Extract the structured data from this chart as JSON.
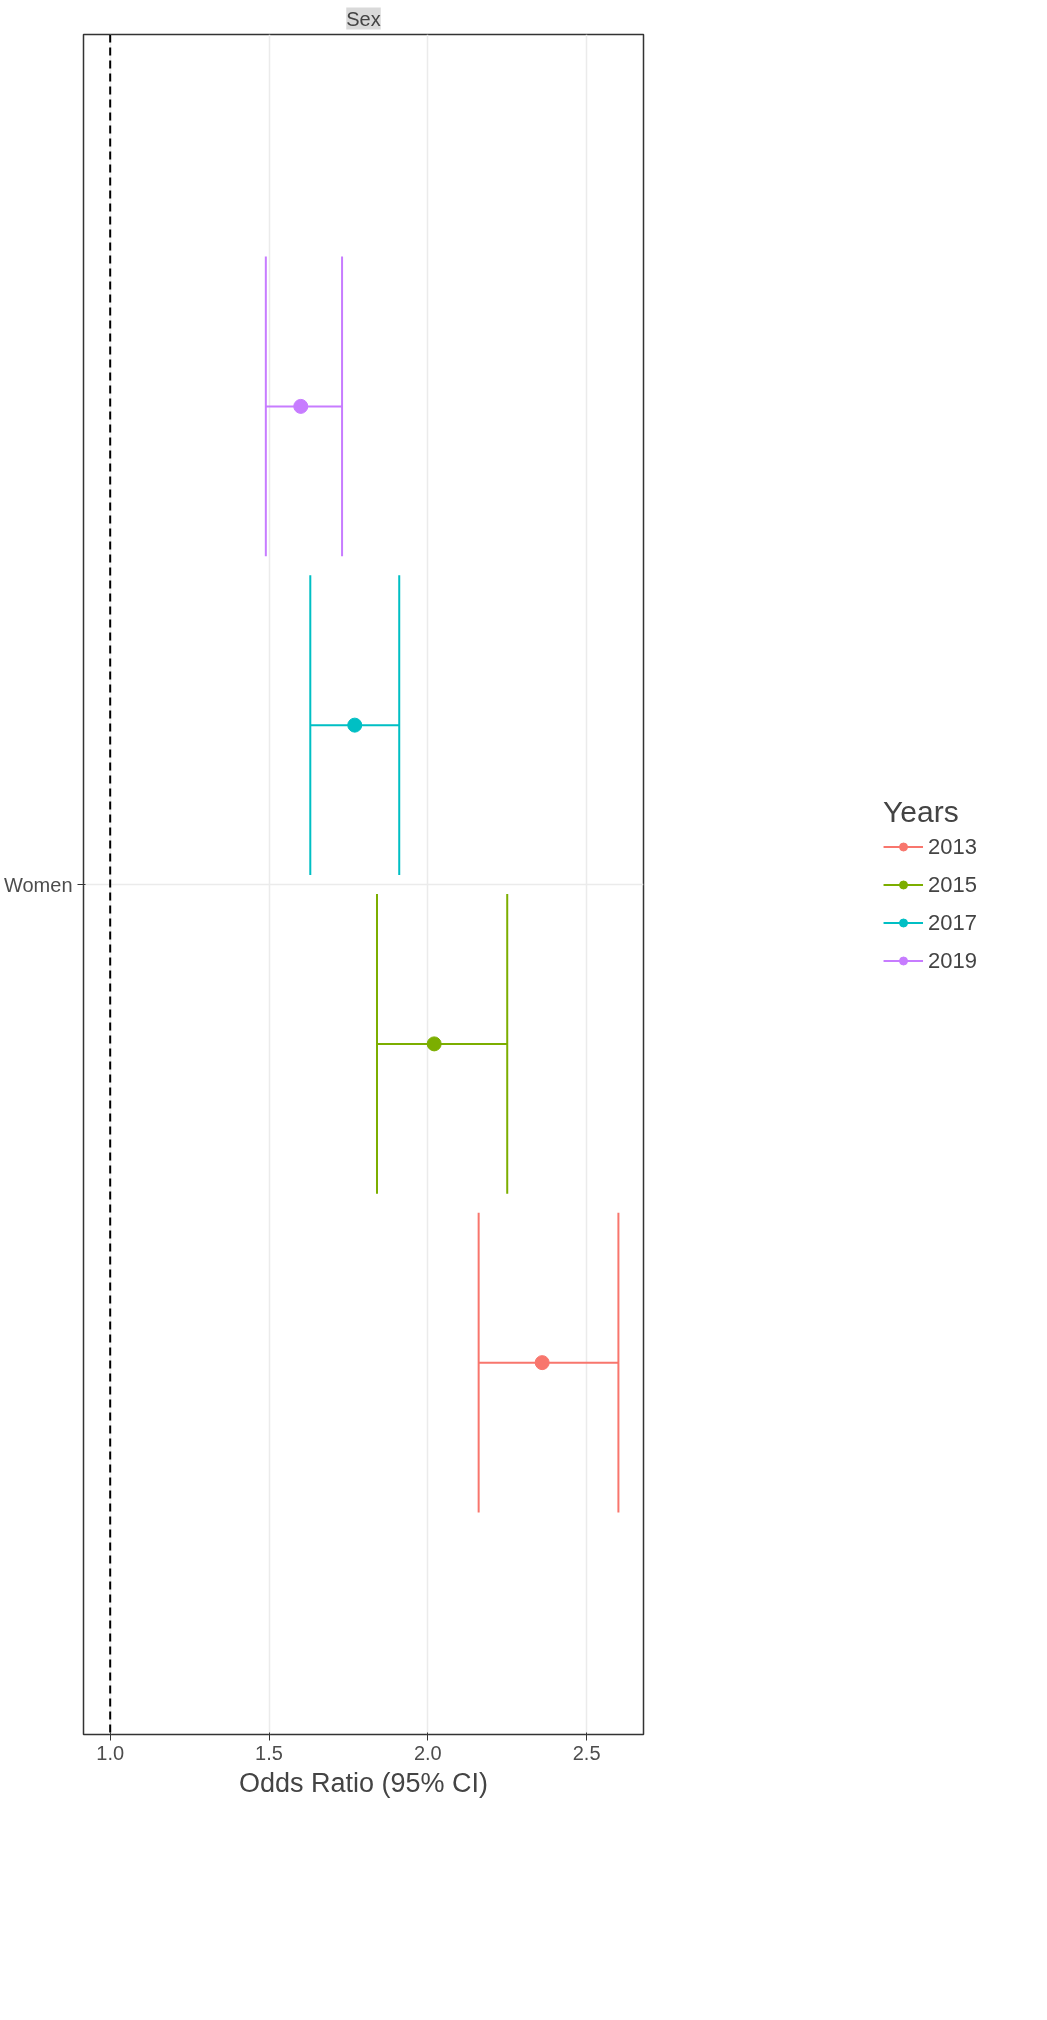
{
  "chart_data": {
    "type": "scatter",
    "orientation": "horizontal",
    "title": "Sex",
    "xlabel": "Odds Ratio (95% CI)",
    "legend_title": "Years",
    "categories": [
      "Women"
    ],
    "xlim": [
      0.916,
      2.679
    ],
    "xticks": [
      {
        "value": 1.0,
        "label": "1.0"
      },
      {
        "value": 1.5,
        "label": "1.5"
      },
      {
        "value": 2.0,
        "label": "2.0"
      },
      {
        "value": 2.5,
        "label": "2.5"
      }
    ],
    "series": [
      {
        "name": "2013",
        "color": "#f8766d",
        "values": [
          2.36
        ],
        "errors": [
          [
            2.16,
            2.6
          ]
        ]
      },
      {
        "name": "2015",
        "color": "#7cae00",
        "values": [
          2.02
        ],
        "errors": [
          [
            1.84,
            2.25
          ]
        ]
      },
      {
        "name": "2017",
        "color": "#00bfc4",
        "values": [
          1.77
        ],
        "errors": [
          [
            1.63,
            1.91
          ]
        ]
      },
      {
        "name": "2019",
        "color": "#c77cff",
        "values": [
          1.6
        ],
        "errors": [
          [
            1.49,
            1.73
          ]
        ]
      }
    ],
    "ref_lines": [
      {
        "axis": "x",
        "value": 1.0,
        "color": "#000000",
        "line_style": "dashed"
      }
    ],
    "grid": true,
    "legend": "right",
    "marker": "circle"
  }
}
